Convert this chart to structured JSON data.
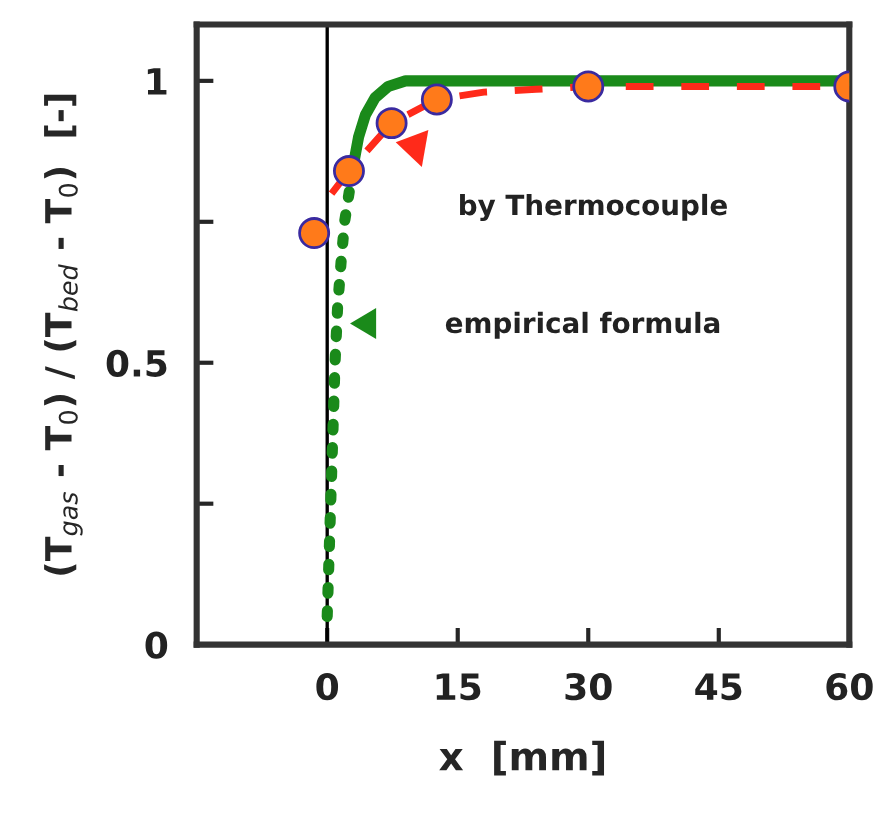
{
  "chart_data": {
    "type": "line",
    "xlabel": "x  [mm]",
    "ylabel": "(T$_{gas}$ - T$_{0}$) / (T$_{bed}$ - T$_{0}$)  [-]",
    "xlim": [
      -15,
      60
    ],
    "xticks": [
      0,
      15,
      30,
      45,
      60
    ],
    "ylim": [
      0,
      1.1
    ],
    "yticks": [
      0,
      {
        "value": 0.25,
        "label": null
      },
      0.5,
      {
        "value": 0.75,
        "label": null
      },
      1
    ],
    "grid": false,
    "legend": false,
    "series": [
      {
        "color": "#1a8a1a",
        "line_style": "dotted",
        "x": [
          0.0,
          0.2,
          0.4,
          0.6,
          0.9,
          1.2,
          1.6,
          2.0,
          2.5,
          3.0
        ],
        "values": [
          0.05,
          0.15,
          0.25,
          0.35,
          0.5,
          0.6,
          0.68,
          0.75,
          0.8,
          0.85
        ]
      },
      {
        "color": "#1a8a1a",
        "line_style": "solid",
        "x": [
          3.0,
          3.6,
          4.4,
          5.5,
          7.0,
          9.0,
          12.0,
          20.0,
          40.0,
          60.0
        ],
        "values": [
          0.85,
          0.9,
          0.94,
          0.97,
          0.99,
          1.0,
          1.0,
          1.0,
          1.0,
          1.0
        ]
      },
      {
        "color": "#ff2a1a",
        "line_style": "dashed",
        "x": [
          0.5,
          2.5,
          7.4,
          12.6,
          18.0,
          24.0,
          30.0,
          60.0
        ],
        "values": [
          0.8,
          0.84,
          0.925,
          0.967,
          0.98,
          0.985,
          0.99,
          0.99
        ]
      },
      {
        "type": "scatter",
        "color": "#ff7a1a",
        "marker": "circle",
        "x": [
          -1.5,
          2.5,
          7.4,
          12.6,
          30.0,
          60.0
        ],
        "values": [
          0.73,
          0.84,
          0.925,
          0.967,
          0.99,
          0.99
        ]
      }
    ],
    "ref_lines": [
      {
        "axis": "x",
        "value": 0,
        "color": "#000000"
      }
    ],
    "annotations": [
      "by Thermocouple",
      "empirical formula"
    ]
  }
}
